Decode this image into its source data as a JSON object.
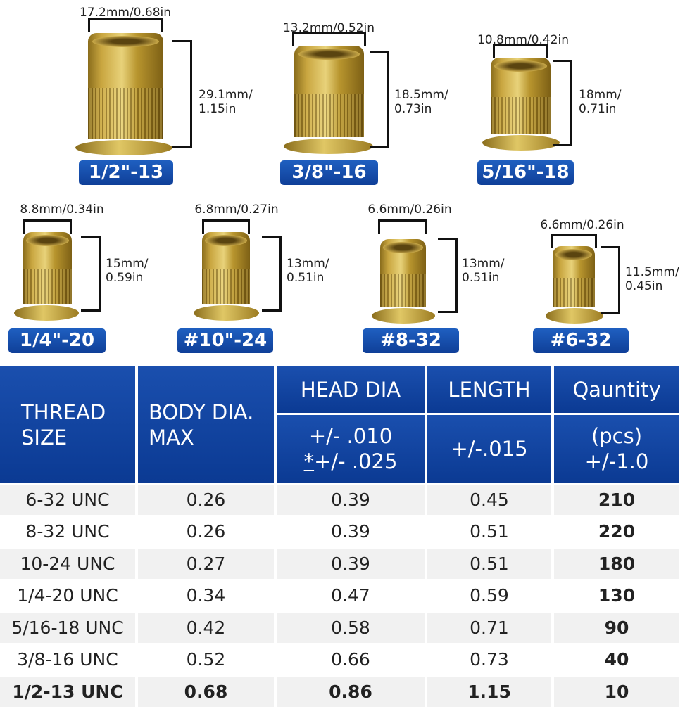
{
  "nuts": [
    {
      "width": "17.2mm/0.68in",
      "height_line1": "29.1mm/",
      "height_line2": "1.15in",
      "label": "1/2\"-13"
    },
    {
      "width": "13.2mm/0.52in",
      "height_line1": "18.5mm/",
      "height_line2": "0.73in",
      "label": "3/8\"-16"
    },
    {
      "width": "10.8mm/0.42in",
      "height_line1": "18mm/",
      "height_line2": "0.71in",
      "label": "5/16\"-18"
    },
    {
      "width": "8.8mm/0.34in",
      "height_line1": "15mm/",
      "height_line2": "0.59in",
      "label": "1/4\"-20"
    },
    {
      "width": "6.8mm/0.27in",
      "height_line1": "13mm/",
      "height_line2": "0.51in",
      "label": "#10\"-24"
    },
    {
      "width": "6.6mm/0.26in",
      "height_line1": "13mm/",
      "height_line2": "0.51in",
      "label": "#8-32"
    },
    {
      "width": "6.6mm/0.26in",
      "height_line1": "11.5mm/",
      "height_line2": "0.45in",
      "label": "#6-32"
    }
  ],
  "table": {
    "headers": {
      "thread_1": "THREAD",
      "thread_2": "SIZE",
      "body_1": "BODY DIA.",
      "body_2": "MAX",
      "head": "HEAD DIA",
      "head_tol_1": "+/- .010",
      "head_tol_2_mark": "*",
      "head_tol_2": "+/- .025",
      "length": "LENGTH",
      "length_tol": "+/-.015",
      "qty": "Qauntity",
      "qty_unit": "(pcs)",
      "qty_tol": "+/-1.0"
    },
    "rows": [
      [
        "6-32 UNC",
        "0.26",
        "0.39",
        "0.45",
        "210"
      ],
      [
        "8-32 UNC",
        "0.26",
        "0.39",
        "0.51",
        "220"
      ],
      [
        "10-24 UNC",
        "0.27",
        "0.39",
        "0.51",
        "180"
      ],
      [
        "1/4-20 UNC",
        "0.34",
        "0.47",
        "0.59",
        "130"
      ],
      [
        "5/16-18 UNC",
        "0.42",
        "0.58",
        "0.71",
        "90"
      ],
      [
        "3/8-16 UNC",
        "0.52",
        "0.66",
        "0.73",
        "40"
      ],
      [
        "1/2-13 UNC",
        "0.68",
        "0.86",
        "1.15",
        "10"
      ]
    ]
  }
}
